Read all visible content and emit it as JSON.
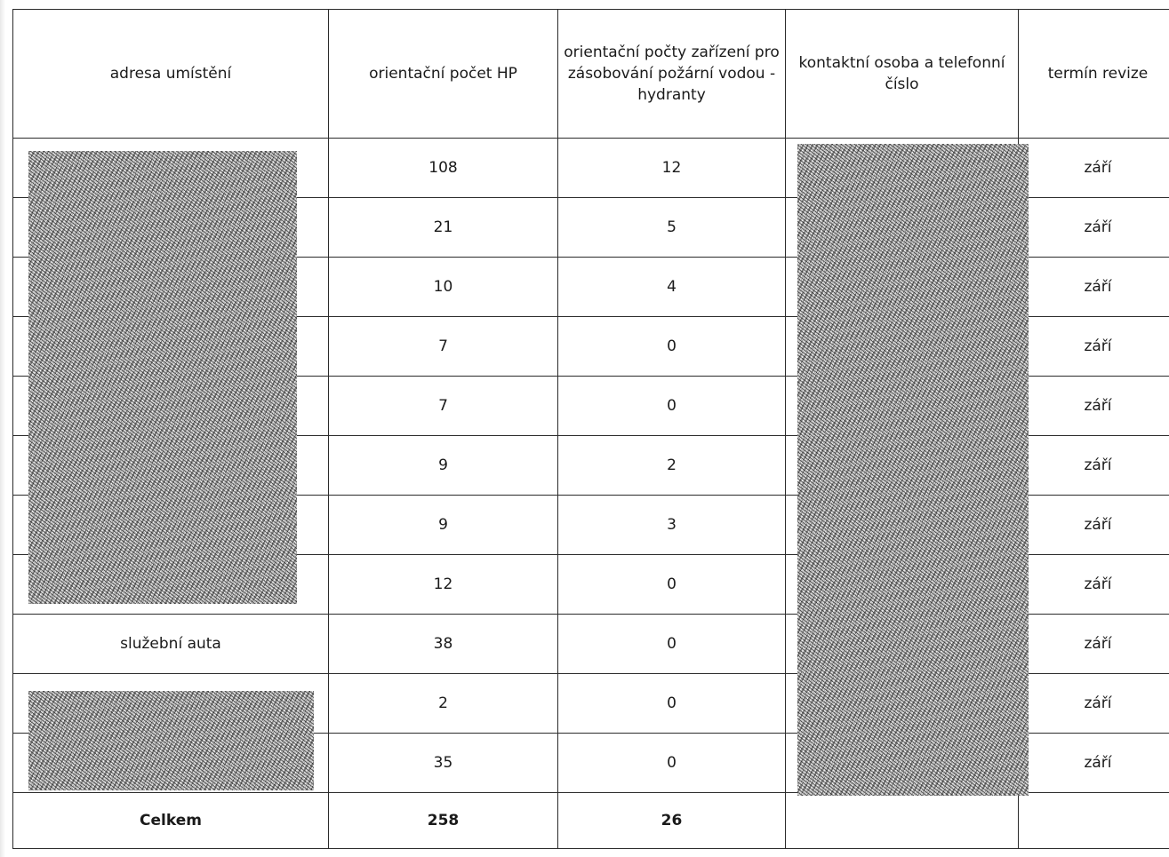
{
  "headers": {
    "address": "adresa umístění",
    "hp_count": "orientační počet HP",
    "hydrants": "orientační počty zařízení pro zásobování požární vodou - hydranty",
    "contact": "kontaktní osoba a telefonní číslo",
    "term": "termín revize"
  },
  "rows": [
    {
      "address": "",
      "hp": "108",
      "hydrants": "12",
      "term": "září"
    },
    {
      "address": "",
      "hp": "21",
      "hydrants": "5",
      "term": "září"
    },
    {
      "address": "",
      "hp": "10",
      "hydrants": "4",
      "term": "září"
    },
    {
      "address": "",
      "hp": "7",
      "hydrants": "0",
      "term": "září"
    },
    {
      "address": "",
      "hp": "7",
      "hydrants": "0",
      "term": "září"
    },
    {
      "address": "",
      "hp": "9",
      "hydrants": "2",
      "term": "září"
    },
    {
      "address": "",
      "hp": "9",
      "hydrants": "3",
      "term": "září"
    },
    {
      "address": "",
      "hp": "12",
      "hydrants": "0",
      "term": "září"
    },
    {
      "address": "služební auta",
      "hp": "38",
      "hydrants": "0",
      "term": "září"
    },
    {
      "address": "",
      "hp": "2",
      "hydrants": "0",
      "term": "září"
    },
    {
      "address": "",
      "hp": "35",
      "hydrants": "0",
      "term": "září"
    }
  ],
  "total": {
    "label": "Celkem",
    "hp": "258",
    "hydrants": "26"
  }
}
